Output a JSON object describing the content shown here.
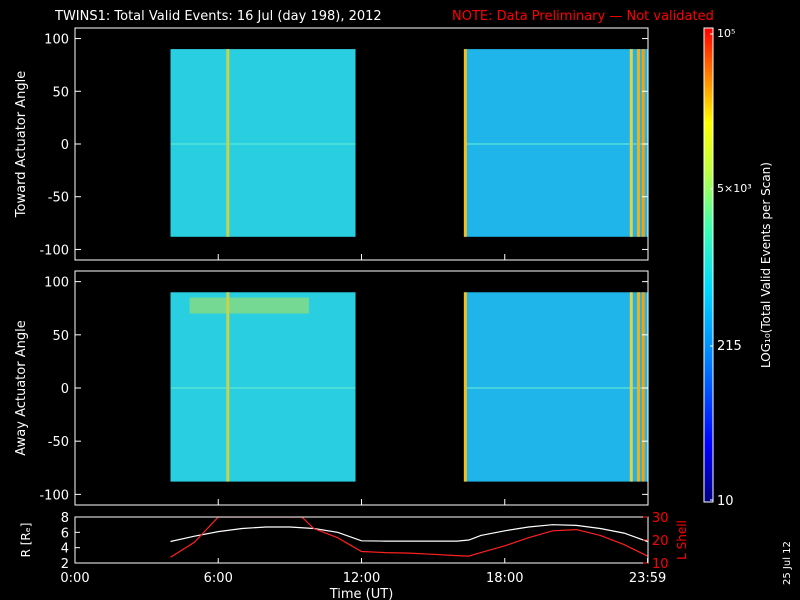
{
  "header": {
    "title": "TWINS1: Total Valid Events: 16 Jul (day 198), 2012",
    "note": "NOTE: Data Preliminary — Not validated"
  },
  "footer": {
    "date_stamp": "25 Jul 12"
  },
  "colors": {
    "note": "#ff0000",
    "axes": "#ffffff",
    "background": "#000000"
  },
  "chart_data": [
    {
      "type": "heatmap",
      "ylabel": "Toward Actuator Angle",
      "ylim": [
        -110,
        110
      ],
      "yticks": [
        100,
        50,
        0,
        -50,
        -100
      ],
      "xlim": [
        0,
        24
      ],
      "angle_range": [
        -88,
        90
      ],
      "segments": [
        {
          "start_hour": 4.0,
          "end_hour": 11.75,
          "base_color": "#29cfe0"
        },
        {
          "start_hour": 16.3,
          "end_hour": 23.98,
          "base_color": "#1fb4ea"
        }
      ],
      "streaks": [
        {
          "hour": 6.4,
          "color": "#c8d34a"
        },
        {
          "hour": 16.35,
          "color": "#f0c020"
        },
        {
          "hour": 23.3,
          "color": "#e8d040"
        },
        {
          "hour": 23.6,
          "color": "#f2b020"
        },
        {
          "hour": 23.8,
          "color": "#ffa000"
        }
      ]
    },
    {
      "type": "heatmap",
      "ylabel": "Away Actuator Angle",
      "ylim": [
        -110,
        110
      ],
      "yticks": [
        100,
        50,
        0,
        -50,
        -100
      ],
      "xlim": [
        0,
        24
      ],
      "angle_range": [
        -88,
        90
      ],
      "segments": [
        {
          "start_hour": 4.0,
          "end_hour": 11.75,
          "base_color": "#29cfe0"
        },
        {
          "start_hour": 16.3,
          "end_hour": 23.98,
          "base_color": "#1fb4ea"
        }
      ],
      "streaks": [
        {
          "hour": 6.4,
          "color": "#c8d34a"
        },
        {
          "hour": 16.35,
          "color": "#f0c020"
        },
        {
          "hour": 23.3,
          "color": "#e8d040"
        },
        {
          "hour": 23.6,
          "color": "#f2b020"
        },
        {
          "hour": 23.8,
          "color": "#ffa000"
        }
      ],
      "hot_region": {
        "start_hour": 4.8,
        "end_hour": 9.8,
        "angle_min": 70,
        "angle_max": 85,
        "color": "#a8e060"
      }
    },
    {
      "type": "line",
      "xlabel": "Time (UT)",
      "xticks": [
        "0:00",
        "6:00",
        "12:00",
        "18:00",
        "23:59"
      ],
      "xtick_hours": [
        0,
        6,
        12,
        18,
        23.983
      ],
      "xlim": [
        0,
        24
      ],
      "ylabel_left": "R [Rₑ]",
      "ylabel_right": "L Shell",
      "ylim_left": [
        2,
        8
      ],
      "yticks_left": [
        2,
        4,
        6,
        8
      ],
      "ylim_right": [
        10,
        30
      ],
      "yticks_right": [
        10,
        20,
        30
      ],
      "series": [
        {
          "axis": "left",
          "color": "#ffffff",
          "x": [
            4.0,
            5.0,
            6.0,
            7.0,
            8.0,
            9.0,
            10.0,
            11.0,
            12.0,
            13.0,
            14.0,
            15.0,
            16.0,
            16.5,
            17.0,
            18.0,
            19.0,
            20.0,
            21.0,
            22.0,
            23.0,
            23.98
          ],
          "y": [
            4.8,
            5.5,
            6.1,
            6.5,
            6.7,
            6.7,
            6.5,
            6.0,
            4.9,
            4.85,
            4.85,
            4.85,
            4.85,
            5.0,
            5.6,
            6.2,
            6.7,
            7.0,
            6.9,
            6.5,
            5.9,
            4.8
          ]
        },
        {
          "axis": "right",
          "color": "#ff2020",
          "x": [
            4.0,
            5.0,
            6.0,
            9.5,
            10.0,
            11.0,
            12.0,
            13.0,
            14.0,
            15.0,
            16.0,
            16.5,
            17.0,
            18.0,
            19.0,
            20.0,
            21.0,
            22.0,
            23.0,
            23.98
          ],
          "y": [
            12.5,
            19.0,
            30.0,
            30.0,
            25.0,
            21.0,
            15.0,
            14.5,
            14.3,
            13.8,
            13.2,
            13.0,
            14.5,
            17.5,
            21.0,
            24.0,
            24.5,
            22.0,
            18.0,
            13.0
          ]
        }
      ]
    }
  ],
  "colorbar": {
    "label": "LOG₁₀(Total Valid Events per Scan)",
    "ticks": [
      "10",
      "215",
      "5×10³",
      "10⁵"
    ]
  }
}
